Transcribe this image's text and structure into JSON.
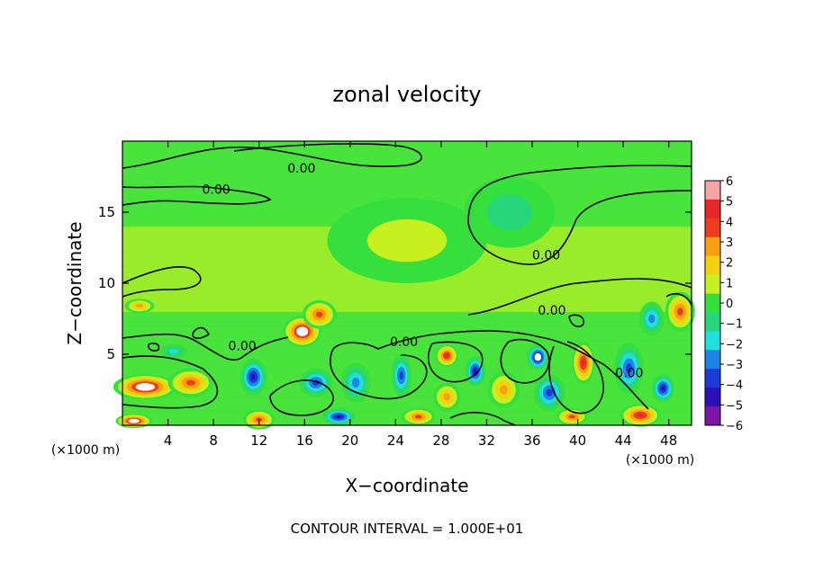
{
  "chart_data": {
    "type": "heatmap",
    "title": "zonal velocity",
    "xlabel": "X−coordinate",
    "ylabel": "Z−coordinate",
    "x_unit_left": "(×1000 m)",
    "x_unit_right": "(×1000 m)",
    "footer": "CONTOUR INTERVAL = 1.000E+01",
    "xlim": [
      0,
      50
    ],
    "ylim": [
      0,
      20
    ],
    "x_ticks": [
      4,
      8,
      12,
      16,
      20,
      24,
      28,
      32,
      36,
      40,
      44,
      48
    ],
    "y_ticks": [
      5,
      10,
      15
    ],
    "colorbar": {
      "min": -6,
      "max": 6,
      "ticks": [
        6,
        5,
        4,
        3,
        2,
        1,
        0,
        -1,
        -2,
        -3,
        -4,
        -5,
        -6
      ],
      "tick_labels": [
        "6",
        "5",
        "4",
        "3",
        "2",
        "1",
        "0",
        "−1",
        "−2",
        "−3",
        "−4",
        "−5",
        "−6"
      ],
      "colors": [
        "#f4a6a6",
        "#e8272b",
        "#f03c1e",
        "#f7a10e",
        "#f2d20e",
        "#c8ef1e",
        "#36e03c",
        "#25d77a",
        "#1fe0dd",
        "#1c84e8",
        "#1e3ad6",
        "#2c10b8",
        "#7b16a8"
      ]
    },
    "contour_label": "0.00",
    "contour_label_points": [
      {
        "x": 14.5,
        "y": 18.1
      },
      {
        "x": 7.0,
        "y": 16.6
      },
      {
        "x": 36.0,
        "y": 12.0
      },
      {
        "x": 36.5,
        "y": 8.1
      },
      {
        "x": 9.3,
        "y": 5.6
      },
      {
        "x": 23.5,
        "y": 5.9
      },
      {
        "x": 43.3,
        "y": 3.7
      }
    ],
    "features": [
      {
        "x": 2.0,
        "y": 2.7,
        "value": 6,
        "sx": 2.8,
        "sy": 0.9
      },
      {
        "x": 6.0,
        "y": 3.0,
        "value": 4,
        "sx": 2.0,
        "sy": 1.0
      },
      {
        "x": 15.8,
        "y": 6.6,
        "value": 6,
        "sx": 1.7,
        "sy": 1.1
      },
      {
        "x": 17.3,
        "y": 7.8,
        "value": 4,
        "sx": 1.5,
        "sy": 1.0
      },
      {
        "x": 11.5,
        "y": 3.4,
        "value": -5,
        "sx": 1.2,
        "sy": 1.3
      },
      {
        "x": 12.0,
        "y": 0.4,
        "value": 4,
        "sx": 1.4,
        "sy": 0.7
      },
      {
        "x": 17.0,
        "y": 3.0,
        "value": -4,
        "sx": 1.5,
        "sy": 1.0
      },
      {
        "x": 20.5,
        "y": 3.0,
        "value": -3,
        "sx": 1.3,
        "sy": 1.4
      },
      {
        "x": 19.0,
        "y": 0.6,
        "value": -5,
        "sx": 1.5,
        "sy": 0.6
      },
      {
        "x": 24.5,
        "y": 3.5,
        "value": -4,
        "sx": 0.9,
        "sy": 1.5
      },
      {
        "x": 26.0,
        "y": 0.6,
        "value": 4,
        "sx": 1.5,
        "sy": 0.6
      },
      {
        "x": 28.5,
        "y": 4.9,
        "value": 5,
        "sx": 1.0,
        "sy": 0.8
      },
      {
        "x": 28.5,
        "y": 2.0,
        "value": 3,
        "sx": 1.2,
        "sy": 1.0
      },
      {
        "x": 31.0,
        "y": 3.8,
        "value": -5,
        "sx": 0.9,
        "sy": 1.1
      },
      {
        "x": 33.5,
        "y": 2.5,
        "value": 3,
        "sx": 1.4,
        "sy": 1.3
      },
      {
        "x": 36.5,
        "y": 4.8,
        "value": -6,
        "sx": 1.0,
        "sy": 0.9
      },
      {
        "x": 37.5,
        "y": 2.3,
        "value": -4,
        "sx": 1.4,
        "sy": 1.3
      },
      {
        "x": 40.5,
        "y": 4.4,
        "value": 5,
        "sx": 1.0,
        "sy": 1.5
      },
      {
        "x": 39.5,
        "y": 0.6,
        "value": 4,
        "sx": 1.4,
        "sy": 0.6
      },
      {
        "x": 44.5,
        "y": 4.0,
        "value": -4,
        "sx": 1.3,
        "sy": 1.8
      },
      {
        "x": 45.5,
        "y": 0.7,
        "value": 5,
        "sx": 1.8,
        "sy": 0.8
      },
      {
        "x": 47.5,
        "y": 2.6,
        "value": -5,
        "sx": 1.0,
        "sy": 1.0
      },
      {
        "x": 49.0,
        "y": 8.0,
        "value": 4,
        "sx": 1.3,
        "sy": 1.4
      },
      {
        "x": 46.5,
        "y": 7.5,
        "value": -3,
        "sx": 1.1,
        "sy": 1.2
      },
      {
        "x": 1.0,
        "y": 0.3,
        "value": 6,
        "sx": 1.6,
        "sy": 0.5
      },
      {
        "x": 1.5,
        "y": 8.4,
        "value": 3,
        "sx": 1.3,
        "sy": 0.5
      },
      {
        "x": 4.5,
        "y": 5.2,
        "value": -2,
        "sx": 1.2,
        "sy": 0.5
      },
      {
        "x": 34.0,
        "y": 15.0,
        "value": -1,
        "sx": 4.0,
        "sy": 2.5
      },
      {
        "x": 25.0,
        "y": 13.0,
        "value": 1,
        "sx": 7.0,
        "sy": 3.0
      }
    ]
  }
}
